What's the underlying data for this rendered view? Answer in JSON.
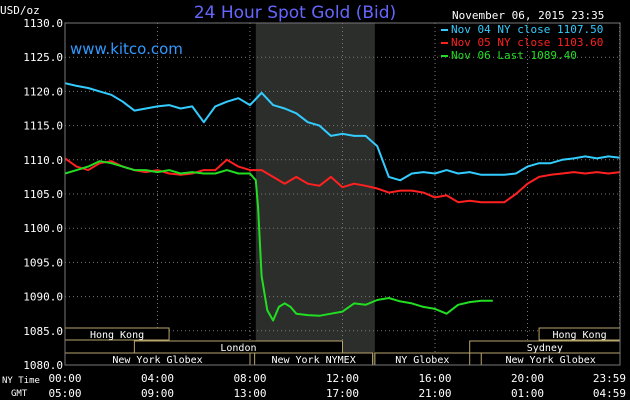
{
  "chart_data": {
    "type": "line",
    "title": "24 Hour Spot Gold (Bid)",
    "y_unit_label": "USD/oz",
    "watermark": "www.kitco.com",
    "timestamp": "November 06, 2015 23:35",
    "ylim": [
      1080,
      1130
    ],
    "y_ticks": [
      "1130.0",
      "1125.0",
      "1120.0",
      "1115.0",
      "1110.0",
      "1105.0",
      "1100.0",
      "1095.0",
      "1090.0",
      "1085.0",
      "1080.0"
    ],
    "x_hours_ny": [
      0,
      24
    ],
    "x_row_labels": {
      "ny": "NY Time",
      "gmt": "GMT"
    },
    "x_ticks": [
      {
        "hour": 0,
        "ny": "00:00",
        "gmt": "05:00"
      },
      {
        "hour": 4,
        "ny": "04:00",
        "gmt": "09:00"
      },
      {
        "hour": 8,
        "ny": "08:00",
        "gmt": "13:00"
      },
      {
        "hour": 12,
        "ny": "12:00",
        "gmt": "17:00"
      },
      {
        "hour": 16,
        "ny": "16:00",
        "gmt": "21:00"
      },
      {
        "hour": 20,
        "ny": "20:00",
        "gmt": "01:00"
      },
      {
        "hour": 23.98,
        "ny": "23:59",
        "gmt": "04:59"
      }
    ],
    "shaded_period_hours": [
      8.25,
      13.4
    ],
    "colors": {
      "background": "#000000",
      "title": "#6666ff",
      "watermark": "#3399ff",
      "grid": "#777777",
      "text": "#ffffff",
      "shade": "#2b2e2b",
      "market_border": "#b8a56a",
      "market_text": "#ffffff"
    },
    "series": [
      {
        "name": "Nov 04 NY close 1107.50",
        "color": "#33ccff",
        "x": [
          0,
          0.5,
          1,
          1.5,
          2,
          2.5,
          3,
          3.5,
          4,
          4.5,
          5,
          5.5,
          6,
          6.5,
          7,
          7.5,
          8,
          8.5,
          9,
          9.5,
          10,
          10.5,
          11,
          11.5,
          12,
          12.5,
          13,
          13.5,
          14,
          14.5,
          15,
          15.5,
          16,
          16.5,
          17,
          17.5,
          18,
          18.5,
          19,
          19.5,
          20,
          20.5,
          21,
          21.5,
          22,
          22.5,
          23,
          23.5,
          24
        ],
        "values": [
          1121.2,
          1120.8,
          1120.5,
          1120.0,
          1119.5,
          1118.5,
          1117.2,
          1117.5,
          1117.8,
          1118.0,
          1117.5,
          1117.8,
          1115.5,
          1117.8,
          1118.5,
          1119.0,
          1118.0,
          1119.8,
          1118.0,
          1117.5,
          1116.8,
          1115.5,
          1115.0,
          1113.5,
          1113.8,
          1113.5,
          1113.5,
          1112.0,
          1107.5,
          1107.0,
          1108.0,
          1108.2,
          1108.0,
          1108.5,
          1108.0,
          1108.2,
          1107.8,
          1107.8,
          1107.8,
          1108.0,
          1109.0,
          1109.5,
          1109.5,
          1110.0,
          1110.2,
          1110.5,
          1110.2,
          1110.5,
          1110.3
        ]
      },
      {
        "name": "Nov 05 NY close 1103.60",
        "color": "#ff2020",
        "x": [
          0,
          0.5,
          1,
          1.5,
          2,
          2.5,
          3,
          3.5,
          4,
          4.5,
          5,
          5.5,
          6,
          6.5,
          7,
          7.5,
          8,
          8.5,
          9,
          9.5,
          10,
          10.5,
          11,
          11.5,
          12,
          12.5,
          13,
          13.5,
          14,
          14.5,
          15,
          15.5,
          16,
          16.5,
          17,
          17.5,
          18,
          18.5,
          19,
          19.5,
          20,
          20.5,
          21,
          21.5,
          22,
          22.5,
          23,
          23.5,
          24
        ],
        "values": [
          1110.2,
          1109.0,
          1108.5,
          1109.5,
          1109.8,
          1109.0,
          1108.5,
          1108.2,
          1108.5,
          1108.0,
          1107.8,
          1108.0,
          1108.5,
          1108.5,
          1110.0,
          1109.0,
          1108.5,
          1108.5,
          1107.5,
          1106.5,
          1107.5,
          1106.5,
          1106.2,
          1107.5,
          1106.0,
          1106.5,
          1106.2,
          1105.8,
          1105.2,
          1105.5,
          1105.5,
          1105.2,
          1104.5,
          1104.8,
          1103.8,
          1104.0,
          1103.8,
          1103.8,
          1103.8,
          1105.0,
          1106.5,
          1107.5,
          1107.8,
          1108.0,
          1108.2,
          1108.0,
          1108.2,
          1108.0,
          1108.2
        ]
      },
      {
        "name": "Nov 06 Last 1089.40",
        "color": "#22dd22",
        "x": [
          0,
          0.5,
          1,
          1.5,
          2,
          2.5,
          3,
          3.5,
          4,
          4.5,
          5,
          5.5,
          6,
          6.5,
          7,
          7.5,
          8,
          8.25,
          8.35,
          8.5,
          8.75,
          9,
          9.25,
          9.5,
          9.75,
          10,
          10.5,
          11,
          11.5,
          12,
          12.5,
          13,
          13.5,
          14,
          14.5,
          15,
          15.5,
          16,
          16.5,
          17,
          17.5,
          18,
          18.5
        ],
        "values": [
          1108.0,
          1108.5,
          1109.0,
          1109.8,
          1109.5,
          1109.0,
          1108.5,
          1108.5,
          1108.2,
          1108.5,
          1108.0,
          1108.2,
          1108.0,
          1108.0,
          1108.5,
          1108.0,
          1108.0,
          1107.0,
          1103.0,
          1093.0,
          1088.0,
          1086.5,
          1088.5,
          1089.0,
          1088.5,
          1087.5,
          1087.3,
          1087.2,
          1087.5,
          1087.8,
          1089.0,
          1088.8,
          1089.5,
          1089.8,
          1089.3,
          1089.0,
          1088.5,
          1088.2,
          1087.5,
          1088.8,
          1089.2,
          1089.4,
          1089.4
        ]
      }
    ],
    "markets": [
      {
        "name": "Hong Kong",
        "start": 0,
        "end": 4.5
      },
      {
        "name": "London",
        "start": 3,
        "end": 12
      },
      {
        "name": "New York Globex",
        "start": 0,
        "end": 8
      },
      {
        "name": "New York NYMEX",
        "start": 8.2,
        "end": 13.3
      },
      {
        "name": "NY Globex",
        "start": 13.4,
        "end": 17.5
      },
      {
        "name": "Sydney",
        "start": 17.5,
        "end": 24
      },
      {
        "name": "Hong Kong",
        "start": 20.5,
        "end": 24
      },
      {
        "name": "New York Globex",
        "start": 18,
        "end": 24
      }
    ]
  }
}
